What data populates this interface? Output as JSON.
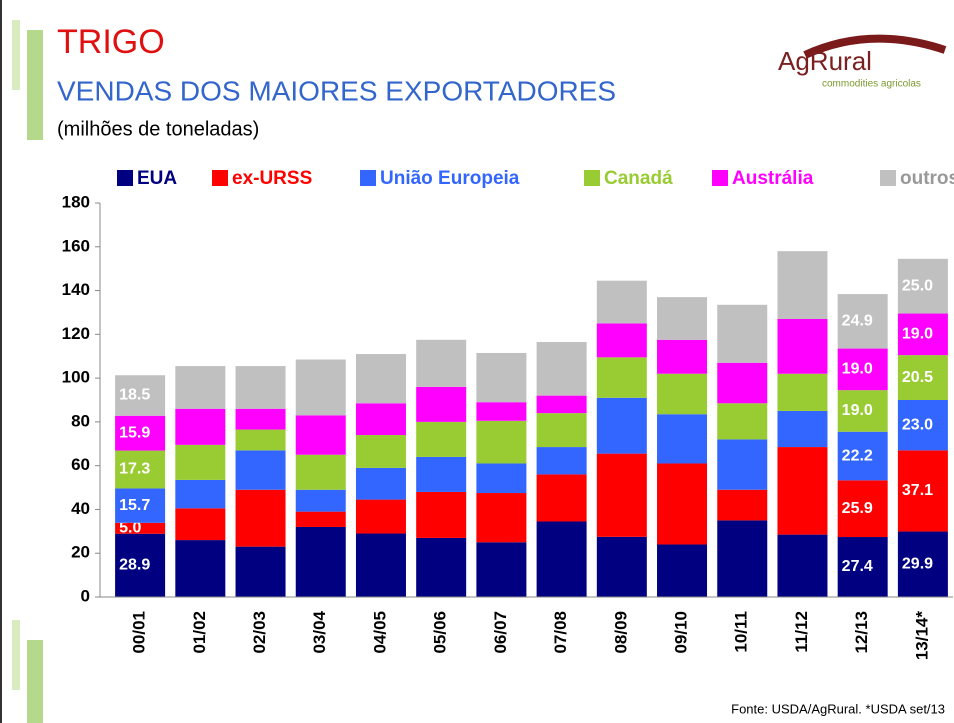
{
  "chart_data": {
    "type": "bar",
    "stacked": true,
    "title": "TRIGO",
    "subtitle": "VENDAS DOS MAIORES EXPORTADORES",
    "unit_label": "(milhões de toneladas)",
    "source": "Fonte: USDA/AgRural. *USDA set/13",
    "categories": [
      "00/01",
      "01/02",
      "02/03",
      "03/04",
      "04/05",
      "05/06",
      "06/07",
      "07/08",
      "08/09",
      "09/10",
      "10/11",
      "11/12",
      "12/13",
      "13/14*"
    ],
    "series": [
      {
        "name": "EUA",
        "color": "#000080",
        "values": [
          28.9,
          26,
          23,
          32,
          29,
          27,
          25,
          34.5,
          27.5,
          24,
          35,
          28.5,
          27.4,
          29.9
        ],
        "value_labels": [
          "28.9",
          null,
          null,
          null,
          null,
          null,
          null,
          null,
          null,
          null,
          null,
          null,
          "27.4",
          "29.9"
        ]
      },
      {
        "name": "ex-URSS",
        "color": "#ff0000",
        "values": [
          5.0,
          14.5,
          26,
          7,
          15.5,
          21,
          22.5,
          21.5,
          38,
          37,
          14,
          40,
          25.9,
          37.1
        ],
        "value_labels": [
          "5.0",
          null,
          null,
          null,
          null,
          null,
          null,
          null,
          null,
          null,
          null,
          null,
          "25.9",
          "37.1"
        ]
      },
      {
        "name": "União Europeia",
        "color": "#3366ff",
        "values": [
          15.7,
          13,
          18,
          10,
          14.5,
          16,
          13.5,
          12.5,
          25.5,
          22.5,
          23,
          16.5,
          22.2,
          23.0
        ],
        "value_labels": [
          "15.7",
          null,
          null,
          null,
          null,
          null,
          null,
          null,
          null,
          null,
          null,
          null,
          "22.2",
          "23.0"
        ]
      },
      {
        "name": "Canadá",
        "color": "#99cc33",
        "values": [
          17.3,
          16,
          9.5,
          16,
          15,
          16,
          19.5,
          15.5,
          18.5,
          18.5,
          16.5,
          17,
          19.0,
          20.5
        ],
        "value_labels": [
          "17.3",
          null,
          null,
          null,
          null,
          null,
          null,
          null,
          null,
          null,
          null,
          null,
          "19.0",
          "20.5"
        ]
      },
      {
        "name": "Austrália",
        "color": "#ff00ff",
        "values": [
          15.9,
          16.5,
          9.5,
          18,
          14.5,
          16,
          8.5,
          8,
          15.5,
          15.5,
          18.5,
          25,
          19.0,
          19.0
        ],
        "value_labels": [
          "15.9",
          null,
          null,
          null,
          null,
          null,
          null,
          null,
          null,
          null,
          null,
          null,
          "19.0",
          "19.0"
        ]
      },
      {
        "name": "outros",
        "color": "#c0c0c0",
        "values": [
          18.5,
          19.5,
          19.5,
          25.5,
          22.5,
          21.5,
          22.5,
          24.5,
          19.5,
          19.5,
          26.5,
          31,
          24.9,
          25.0
        ],
        "value_labels": [
          "18.5",
          null,
          null,
          null,
          null,
          null,
          null,
          null,
          null,
          null,
          null,
          null,
          "24.9",
          "25.0"
        ]
      }
    ],
    "ylim": [
      0,
      180
    ],
    "yticks": [
      0,
      20,
      40,
      60,
      80,
      100,
      120,
      140,
      160,
      180
    ],
    "grid": false
  },
  "logo": {
    "name": "AgRural",
    "tagline": "commodities agricolas"
  }
}
